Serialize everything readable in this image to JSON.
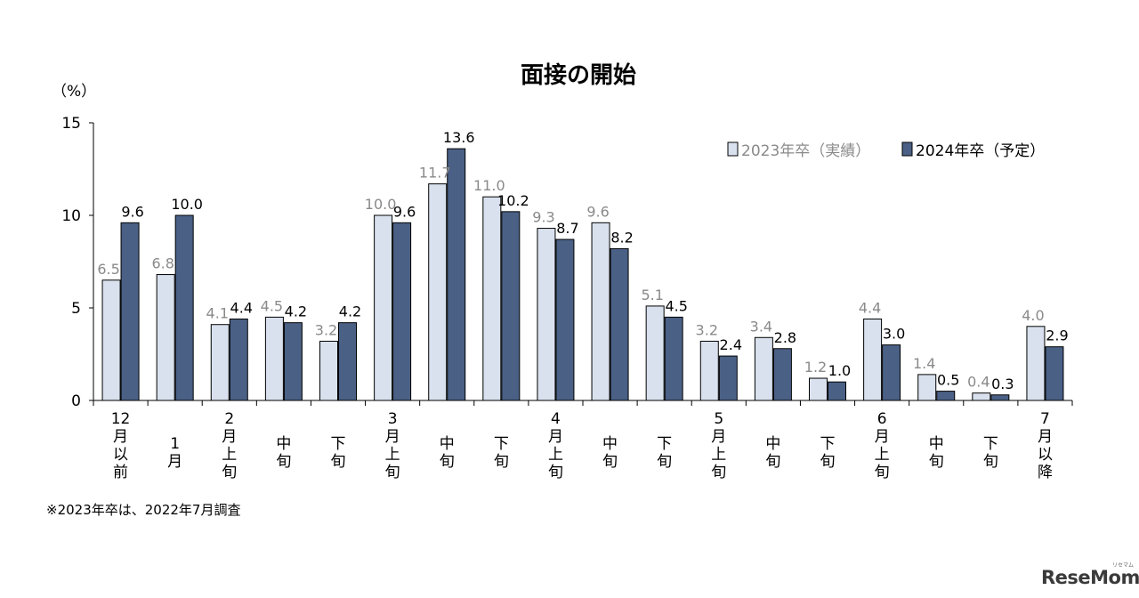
{
  "chart_data": {
    "type": "bar",
    "title": "面接の開始",
    "ylabel": "（%）",
    "ylim": [
      0,
      15
    ],
    "yticks": [
      "0",
      "5",
      "10",
      "15"
    ],
    "grid": false,
    "legend_position": "top-right",
    "categories": [
      [
        "12",
        "月",
        "以",
        "前"
      ],
      [
        "1",
        "月"
      ],
      [
        "2",
        "月",
        "上",
        "旬"
      ],
      [
        "中",
        "旬"
      ],
      [
        "下",
        "旬"
      ],
      [
        "3",
        "月",
        "上",
        "旬"
      ],
      [
        "中",
        "旬"
      ],
      [
        "下",
        "旬"
      ],
      [
        "4",
        "月",
        "上",
        "旬"
      ],
      [
        "中",
        "旬"
      ],
      [
        "下",
        "旬"
      ],
      [
        "5",
        "月",
        "上",
        "旬"
      ],
      [
        "中",
        "旬"
      ],
      [
        "下",
        "旬"
      ],
      [
        "6",
        "月",
        "上",
        "旬"
      ],
      [
        "中",
        "旬"
      ],
      [
        "下",
        "旬"
      ],
      [
        "7",
        "月",
        "以",
        "降"
      ]
    ],
    "series": [
      {
        "name": "2023年卒（実績）",
        "color": "#d9e1ee",
        "values": [
          6.5,
          6.8,
          4.1,
          4.5,
          3.2,
          10.0,
          11.7,
          11.0,
          9.3,
          9.6,
          5.1,
          3.2,
          3.4,
          1.2,
          4.4,
          1.4,
          0.4,
          4.0
        ],
        "labels": [
          "6.5",
          "6.8",
          "4.1",
          "4.5",
          "3.2",
          "10.0",
          "11.7",
          "11.0",
          "9.3",
          "9.6",
          "5.1",
          "3.2",
          "3.4",
          "1.2",
          "4.4",
          "1.4",
          "0.4",
          "4.0"
        ]
      },
      {
        "name": "2024年卒（予定）",
        "color": "#4a6085",
        "values": [
          9.6,
          10.0,
          4.4,
          4.2,
          4.2,
          9.6,
          13.6,
          10.2,
          8.7,
          8.2,
          4.5,
          2.4,
          2.8,
          1.0,
          3.0,
          0.5,
          0.3,
          2.9
        ],
        "labels": [
          "9.6",
          "10.0",
          "4.4",
          "4.2",
          "4.2",
          "9.6",
          "13.6",
          "10.2",
          "8.7",
          "8.2",
          "4.5",
          "2.4",
          "2.8",
          "1.0",
          "3.0",
          "0.5",
          "0.3",
          "2.9"
        ]
      }
    ]
  },
  "footnote": "※2023年卒は、2022年7月調査",
  "watermark": "ReseMom",
  "watermark_sub": "リセマム"
}
